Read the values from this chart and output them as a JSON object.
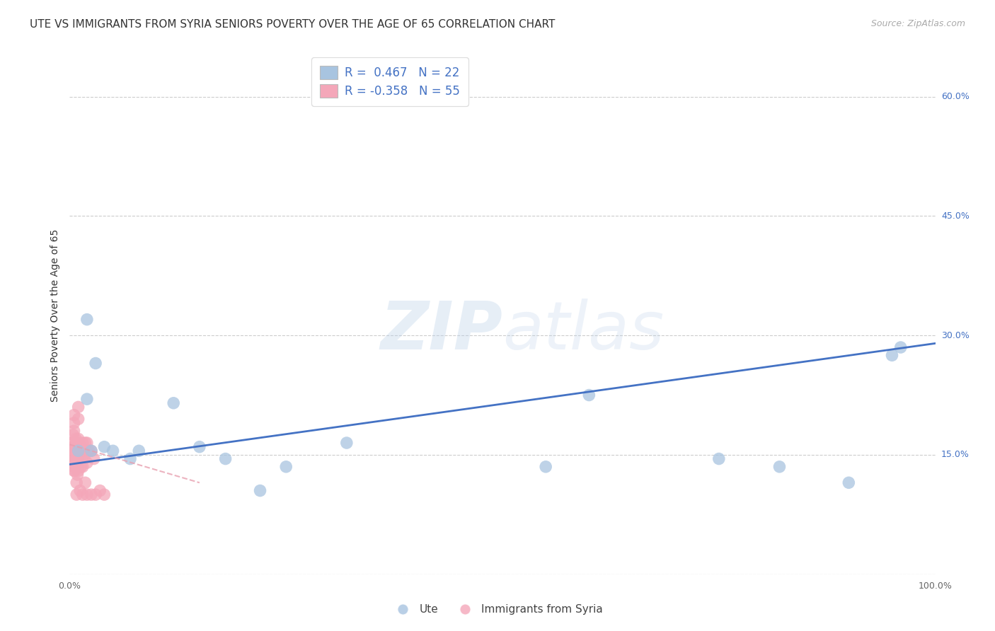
{
  "title": "UTE VS IMMIGRANTS FROM SYRIA SENIORS POVERTY OVER THE AGE OF 65 CORRELATION CHART",
  "source": "Source: ZipAtlas.com",
  "ylabel": "Seniors Poverty Over the Age of 65",
  "xlim": [
    0,
    1.0
  ],
  "ylim": [
    0,
    0.65
  ],
  "xticks": [
    0.0,
    0.1,
    0.2,
    0.3,
    0.4,
    0.5,
    0.6,
    0.7,
    0.8,
    0.9,
    1.0
  ],
  "xticklabels": [
    "0.0%",
    "",
    "",
    "",
    "",
    "",
    "",
    "",
    "",
    "",
    "100.0%"
  ],
  "yticks": [
    0.0,
    0.15,
    0.3,
    0.45,
    0.6
  ],
  "yticklabels": [
    "",
    "15.0%",
    "30.0%",
    "45.0%",
    "60.0%"
  ],
  "blue_color": "#a8c4e0",
  "pink_color": "#f4a7b9",
  "blue_line_color": "#4472c4",
  "pink_line_color": "#e8a0b0",
  "R_blue": 0.467,
  "N_blue": 22,
  "R_pink": -0.358,
  "N_pink": 55,
  "ute_x": [
    0.01,
    0.02,
    0.02,
    0.025,
    0.03,
    0.04,
    0.05,
    0.07,
    0.08,
    0.12,
    0.15,
    0.18,
    0.22,
    0.25,
    0.32,
    0.55,
    0.6,
    0.75,
    0.82,
    0.9,
    0.95,
    0.96
  ],
  "ute_y": [
    0.155,
    0.22,
    0.32,
    0.155,
    0.265,
    0.16,
    0.155,
    0.145,
    0.155,
    0.215,
    0.16,
    0.145,
    0.105,
    0.135,
    0.165,
    0.135,
    0.225,
    0.145,
    0.135,
    0.115,
    0.275,
    0.285
  ],
  "syria_x": [
    0.002,
    0.002,
    0.003,
    0.003,
    0.004,
    0.004,
    0.005,
    0.005,
    0.005,
    0.005,
    0.005,
    0.005,
    0.005,
    0.005,
    0.005,
    0.005,
    0.006,
    0.006,
    0.007,
    0.007,
    0.008,
    0.008,
    0.008,
    0.009,
    0.009,
    0.01,
    0.01,
    0.01,
    0.01,
    0.01,
    0.01,
    0.01,
    0.012,
    0.012,
    0.013,
    0.013,
    0.014,
    0.015,
    0.015,
    0.015,
    0.015,
    0.016,
    0.017,
    0.018,
    0.018,
    0.02,
    0.02,
    0.02,
    0.022,
    0.025,
    0.025,
    0.028,
    0.03,
    0.035,
    0.04
  ],
  "syria_y": [
    0.155,
    0.165,
    0.14,
    0.16,
    0.145,
    0.175,
    0.13,
    0.135,
    0.14,
    0.145,
    0.15,
    0.155,
    0.16,
    0.18,
    0.19,
    0.2,
    0.13,
    0.155,
    0.14,
    0.17,
    0.1,
    0.115,
    0.16,
    0.125,
    0.165,
    0.13,
    0.14,
    0.15,
    0.16,
    0.17,
    0.195,
    0.21,
    0.105,
    0.155,
    0.135,
    0.16,
    0.145,
    0.1,
    0.135,
    0.155,
    0.165,
    0.155,
    0.145,
    0.115,
    0.165,
    0.1,
    0.14,
    0.165,
    0.155,
    0.1,
    0.155,
    0.145,
    0.1,
    0.105,
    0.1
  ],
  "background_color": "#ffffff",
  "grid_color": "#cccccc",
  "title_fontsize": 11,
  "axis_label_fontsize": 10,
  "tick_fontsize": 9,
  "blue_line_x0": 0.0,
  "blue_line_x1": 1.0,
  "blue_line_y0": 0.138,
  "blue_line_y1": 0.29,
  "pink_line_x0": 0.0,
  "pink_line_x1": 0.15,
  "pink_line_y0": 0.163,
  "pink_line_y1": 0.115
}
